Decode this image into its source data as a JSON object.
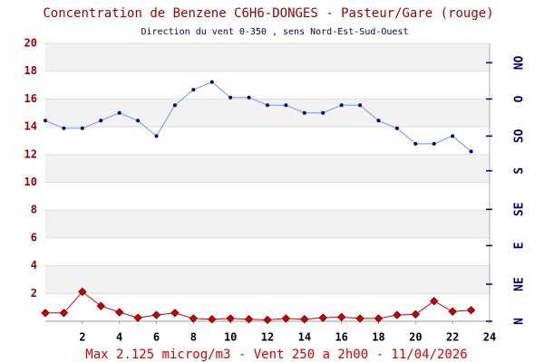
{
  "chart_data": {
    "type": "line",
    "title": "Concentration de Benzene C6H6-DONGES - Pasteur/Gare (rouge)",
    "subtitle": "Direction du vent 0-350 , sens Nord-Est-Sud-Ouest",
    "footer": "Max 2.125 microg/m3 - Vent 250  a 2h00 - 11/04/2026",
    "x": [
      0,
      1,
      2,
      3,
      4,
      5,
      6,
      7,
      8,
      9,
      10,
      11,
      12,
      13,
      14,
      15,
      16,
      17,
      18,
      19,
      20,
      21,
      22,
      23
    ],
    "xlim": [
      0,
      24
    ],
    "xticks": [
      2,
      4,
      6,
      8,
      10,
      12,
      14,
      16,
      18,
      20,
      22,
      24
    ],
    "ylim": [
      0,
      20
    ],
    "yticks": [
      2,
      4,
      6,
      8,
      10,
      12,
      14,
      16,
      18,
      20
    ],
    "y2lim": [
      0,
      360
    ],
    "y2ticks": [
      {
        "value": 0,
        "label": "N"
      },
      {
        "value": 48,
        "label": "NE"
      },
      {
        "value": 98,
        "label": "E"
      },
      {
        "value": 145,
        "label": "SE"
      },
      {
        "value": 195,
        "label": "S"
      },
      {
        "value": 240,
        "label": "SO"
      },
      {
        "value": 288,
        "label": "O"
      },
      {
        "value": 335,
        "label": "NO"
      }
    ],
    "bands": true,
    "grid": true,
    "series": [
      {
        "color": "#cc0000",
        "marker": "diamond",
        "values": [
          0.6,
          0.6,
          2.125,
          1.1,
          0.65,
          0.25,
          0.45,
          0.6,
          0.2,
          0.15,
          0.2,
          0.15,
          0.1,
          0.2,
          0.15,
          0.25,
          0.3,
          0.2,
          0.2,
          0.45,
          0.5,
          1.45,
          0.7,
          0.8
        ]
      },
      {
        "color": "#6699ee",
        "marker": "circle",
        "axis": "y2",
        "values": [
          260,
          250,
          250,
          260,
          270,
          260,
          240,
          280,
          300,
          310,
          290,
          290,
          280,
          280,
          270,
          270,
          280,
          280,
          260,
          250,
          230,
          230,
          240,
          220
        ]
      }
    ]
  }
}
